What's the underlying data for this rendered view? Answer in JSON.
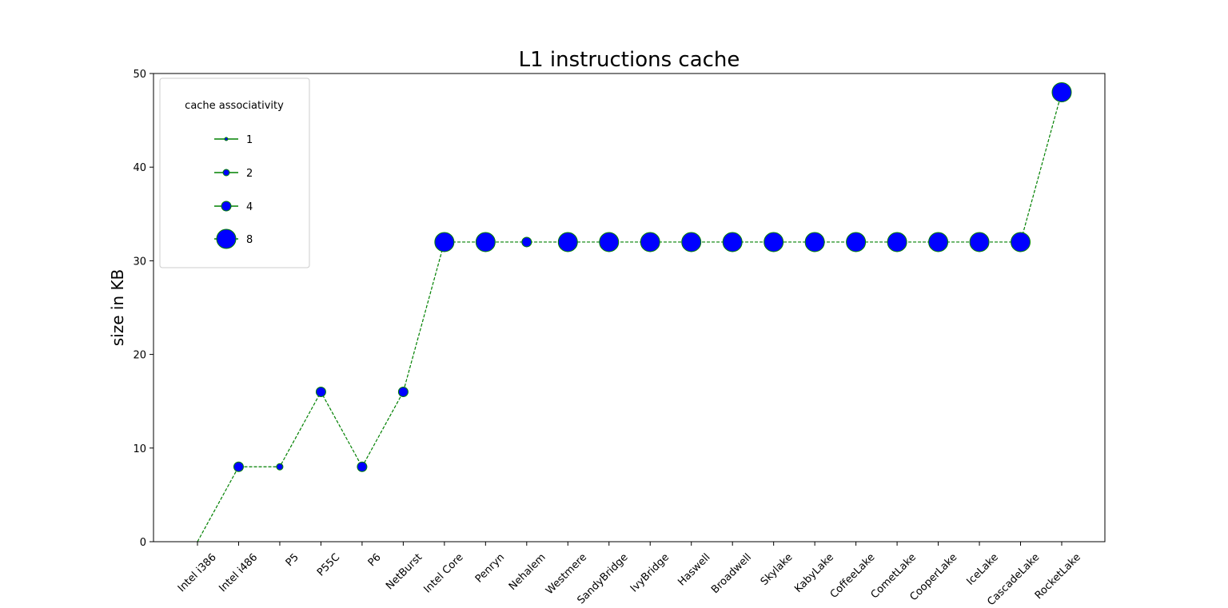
{
  "chart_data": {
    "type": "line",
    "title": "L1 instructions cache",
    "xlabel": "",
    "ylabel": "size in KB",
    "ylim": [
      0,
      50
    ],
    "yticks": [
      0,
      10,
      20,
      30,
      40,
      50
    ],
    "grid": false,
    "line_style": "dashed",
    "line_color": "#008000",
    "marker_face_color": "#0000ff",
    "marker_edge_color": "#008000",
    "categories": [
      "Intel i386",
      "Intel i486",
      "P5",
      "P55C",
      "P6",
      "NetBurst",
      "Intel Core",
      "Penryn",
      "Nehalem",
      "Westmere",
      "SandyBridge",
      "IvyBridge",
      "Haswell",
      "Broadwell",
      "Skylake",
      "KabyLake",
      "CoffeeLake",
      "CometLake",
      "CooperLake",
      "IceLake",
      "CascadeLake",
      "RocketLake"
    ],
    "series": [
      {
        "values": [
          0,
          8,
          8,
          16,
          8,
          16,
          32,
          32,
          32,
          32,
          32,
          32,
          32,
          32,
          32,
          32,
          32,
          32,
          32,
          32,
          32,
          48
        ],
        "associativity": [
          null,
          4,
          2,
          4,
          4,
          4,
          8,
          8,
          4,
          8,
          8,
          8,
          8,
          8,
          8,
          8,
          8,
          8,
          8,
          8,
          8,
          8
        ]
      }
    ],
    "legend": {
      "title": "cache associativity",
      "placement": "upper-left",
      "entries": [
        "1",
        "2",
        "4",
        "8"
      ]
    }
  }
}
